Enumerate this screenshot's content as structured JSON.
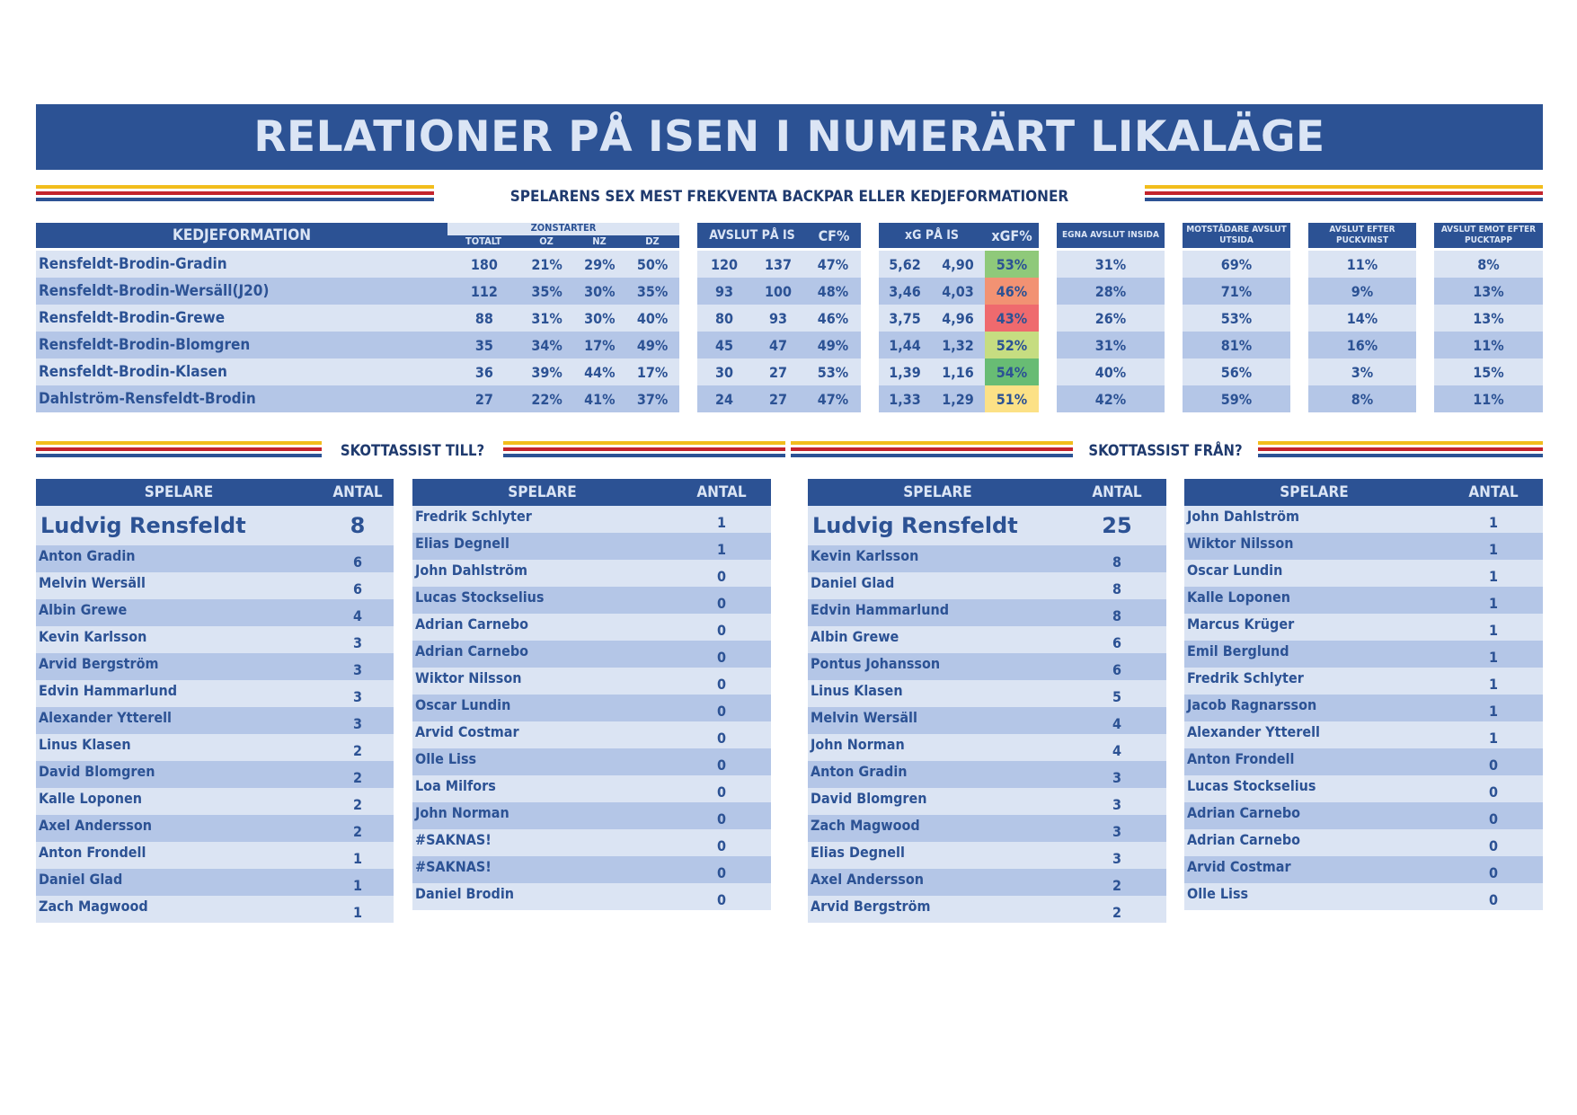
{
  "title": "RELATIONER PÅ ISEN I NUMERÄRT LIKALÄGE",
  "subtitle": "SPELARENS SEX MEST FREKVENTA BACKPAR ELLER KEDJEFORMATIONER",
  "formation_table": {
    "h_kedje": "KEDJEFORMATION",
    "h_zonstarter": "ZONSTARTER",
    "h_totalt": "TOTALT",
    "h_oz": "OZ",
    "h_nz": "NZ",
    "h_dz": "DZ",
    "h_avslut": "AVSLUT PÅ IS",
    "h_cf": "CF%",
    "h_xg": "xG PÅ IS",
    "h_xgf": "xGF%",
    "h_egna": "EGNA AVSLUT INSIDA",
    "h_mot": "MOTSTÅDARE AVSLUT UTSIDA",
    "h_efter": "AVSLUT EFTER PUCKVINST",
    "h_emot": "AVSLUT EMOT EFTER PUCKTAPP",
    "rows": [
      {
        "name": "Rensfeldt-Brodin-Gradin",
        "totalt": "180",
        "oz": "21%",
        "nz": "29%",
        "dz": "50%",
        "af": "120",
        "aa": "137",
        "cf": "47%",
        "xgf": "5,62",
        "xga": "4,90",
        "xgfp": "53%",
        "xgf_color": "#8fc97a",
        "egna": "31%",
        "mot": "69%",
        "efter": "11%",
        "emot": "8%"
      },
      {
        "name": "Rensfeldt-Brodin-Wersäll(J20)",
        "totalt": "112",
        "oz": "35%",
        "nz": "30%",
        "dz": "35%",
        "af": "93",
        "aa": "100",
        "cf": "48%",
        "xgf": "3,46",
        "xga": "4,03",
        "xgfp": "46%",
        "xgf_color": "#f29273",
        "egna": "28%",
        "mot": "71%",
        "efter": "9%",
        "emot": "13%"
      },
      {
        "name": "Rensfeldt-Brodin-Grewe",
        "totalt": "88",
        "oz": "31%",
        "nz": "30%",
        "dz": "40%",
        "af": "80",
        "aa": "93",
        "cf": "46%",
        "xgf": "3,75",
        "xga": "4,96",
        "xgfp": "43%",
        "xgf_color": "#ef6a6e",
        "egna": "26%",
        "mot": "53%",
        "efter": "14%",
        "emot": "13%"
      },
      {
        "name": "Rensfeldt-Brodin-Blomgren",
        "totalt": "35",
        "oz": "34%",
        "nz": "17%",
        "dz": "49%",
        "af": "45",
        "aa": "47",
        "cf": "49%",
        "xgf": "1,44",
        "xga": "1,32",
        "xgfp": "52%",
        "xgf_color": "#c6dd81",
        "egna": "31%",
        "mot": "81%",
        "efter": "16%",
        "emot": "11%"
      },
      {
        "name": "Rensfeldt-Brodin-Klasen",
        "totalt": "36",
        "oz": "39%",
        "nz": "44%",
        "dz": "17%",
        "af": "30",
        "aa": "27",
        "cf": "53%",
        "xgf": "1,39",
        "xga": "1,16",
        "xgfp": "54%",
        "xgf_color": "#68bc74",
        "egna": "40%",
        "mot": "56%",
        "efter": "3%",
        "emot": "15%"
      },
      {
        "name": "Dahlström-Rensfeldt-Brodin",
        "totalt": "27",
        "oz": "22%",
        "nz": "41%",
        "dz": "37%",
        "af": "24",
        "aa": "27",
        "cf": "47%",
        "xgf": "1,33",
        "xga": "1,29",
        "xgfp": "51%",
        "xgf_color": "#fce186",
        "egna": "42%",
        "mot": "59%",
        "efter": "8%",
        "emot": "11%"
      }
    ]
  },
  "assist_till_label": "SKOTTASSIST TILL?",
  "assist_fran_label": "SKOTTASSIST FRÅN?",
  "tables": [
    {
      "h_player": "SPELARE",
      "h_count": "ANTAL",
      "top": {
        "name": "Ludvig Rensfeldt",
        "count": "8"
      },
      "rows": [
        [
          "Anton Gradin",
          "6"
        ],
        [
          "Melvin Wersäll",
          "6"
        ],
        [
          "Albin Grewe",
          "4"
        ],
        [
          "Kevin Karlsson",
          "3"
        ],
        [
          "Arvid Bergström",
          "3"
        ],
        [
          "Edvin Hammarlund",
          "3"
        ],
        [
          "Alexander Ytterell",
          "3"
        ],
        [
          "Linus Klasen",
          "2"
        ],
        [
          "David Blomgren",
          "2"
        ],
        [
          "Kalle Loponen",
          "2"
        ],
        [
          "Axel Andersson",
          "2"
        ],
        [
          "Anton Frondell",
          "1"
        ],
        [
          "Daniel Glad",
          "1"
        ],
        [
          "Zach Magwood",
          "1"
        ]
      ]
    },
    {
      "h_player": "SPELARE",
      "h_count": "ANTAL",
      "rows": [
        [
          "Fredrik Schlyter",
          "1"
        ],
        [
          "Elias Degnell",
          "1"
        ],
        [
          "John Dahlström",
          "0"
        ],
        [
          "Lucas Stockselius",
          "0"
        ],
        [
          "Adrian Carnebo",
          "0"
        ],
        [
          "Adrian Carnebo",
          "0"
        ],
        [
          "Wiktor Nilsson",
          "0"
        ],
        [
          "Oscar Lundin",
          "0"
        ],
        [
          "Arvid Costmar",
          "0"
        ],
        [
          "Olle Liss",
          "0"
        ],
        [
          "Loa Milfors",
          "0"
        ],
        [
          "John Norman",
          "0"
        ],
        [
          "#SAKNAS!",
          "0"
        ],
        [
          "#SAKNAS!",
          "0"
        ],
        [
          "Daniel Brodin",
          "0"
        ]
      ]
    },
    {
      "h_player": "SPELARE",
      "h_count": "ANTAL",
      "top": {
        "name": "Ludvig Rensfeldt",
        "count": "25"
      },
      "rows": [
        [
          "Kevin Karlsson",
          "8"
        ],
        [
          "Daniel Glad",
          "8"
        ],
        [
          "Edvin Hammarlund",
          "8"
        ],
        [
          "Albin Grewe",
          "6"
        ],
        [
          "Pontus Johansson",
          "6"
        ],
        [
          "Linus Klasen",
          "5"
        ],
        [
          "Melvin Wersäll",
          "4"
        ],
        [
          "John Norman",
          "4"
        ],
        [
          "Anton Gradin",
          "3"
        ],
        [
          "David Blomgren",
          "3"
        ],
        [
          "Zach Magwood",
          "3"
        ],
        [
          "Elias Degnell",
          "3"
        ],
        [
          "Axel Andersson",
          "2"
        ],
        [
          "Arvid Bergström",
          "2"
        ]
      ]
    },
    {
      "h_player": "SPELARE",
      "h_count": "ANTAL",
      "rows": [
        [
          "John Dahlström",
          "1"
        ],
        [
          "Wiktor Nilsson",
          "1"
        ],
        [
          "Oscar Lundin",
          "1"
        ],
        [
          "Kalle Loponen",
          "1"
        ],
        [
          "Marcus Krüger",
          "1"
        ],
        [
          "Emil Berglund",
          "1"
        ],
        [
          "Fredrik Schlyter",
          "1"
        ],
        [
          "Jacob Ragnarsson",
          "1"
        ],
        [
          "Alexander Ytterell",
          "1"
        ],
        [
          "Anton Frondell",
          "0"
        ],
        [
          "Lucas Stockselius",
          "0"
        ],
        [
          "Adrian Carnebo",
          "0"
        ],
        [
          "Adrian Carnebo",
          "0"
        ],
        [
          "Arvid Costmar",
          "0"
        ],
        [
          "Olle Liss",
          "0"
        ]
      ]
    }
  ]
}
